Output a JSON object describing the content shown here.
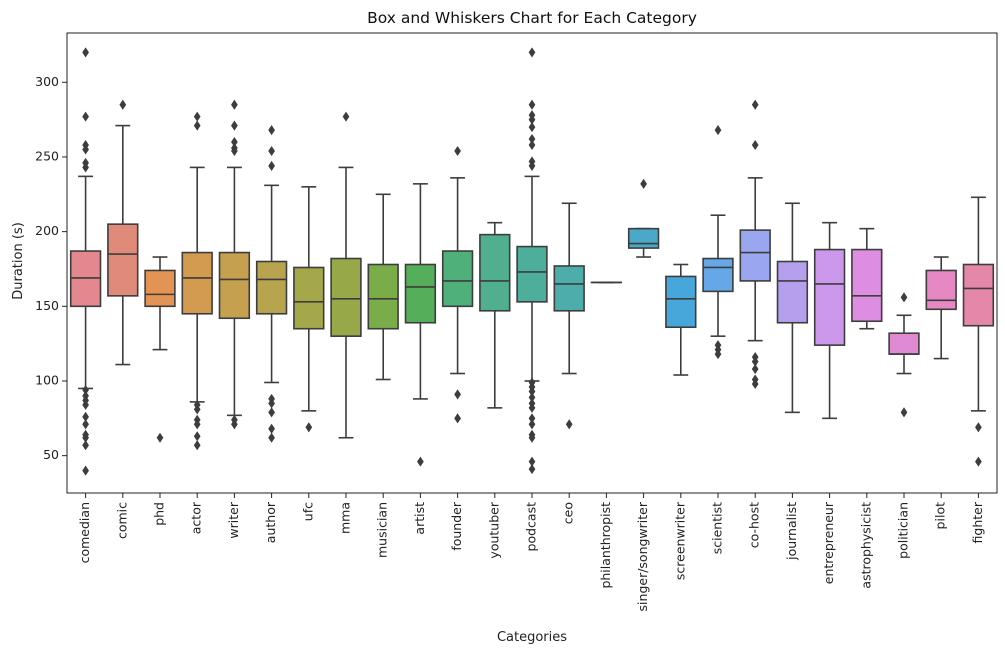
{
  "chart_data": {
    "type": "box",
    "title": "Box and Whiskers Chart for Each Category",
    "xlabel": "Categories",
    "ylabel": "Duration (s)",
    "ylim": [
      25,
      333
    ],
    "yticks": [
      50,
      100,
      150,
      200,
      250,
      300
    ],
    "grid": false,
    "legend": "none",
    "box_edge_color": "#3d3d3d",
    "categories": [
      {
        "name": "comedian",
        "color": "#e5878f",
        "whisker_low": 95,
        "q1": 150,
        "median": 169,
        "q3": 187,
        "whisker_high": 237,
        "outliers": [
          320,
          277,
          258,
          255,
          246,
          243,
          94,
          90,
          87,
          84,
          76,
          71,
          64,
          62,
          57,
          40
        ]
      },
      {
        "name": "comic",
        "color": "#e08b79",
        "whisker_low": 111,
        "q1": 157,
        "median": 185,
        "q3": 205,
        "whisker_high": 271,
        "outliers": [
          285
        ]
      },
      {
        "name": "phd",
        "color": "#e39353",
        "whisker_low": 121,
        "q1": 150,
        "median": 158,
        "q3": 174,
        "whisker_high": 183,
        "outliers": [
          62
        ]
      },
      {
        "name": "actor",
        "color": "#d29b50",
        "whisker_low": 86,
        "q1": 145,
        "median": 169,
        "q3": 186,
        "whisker_high": 243,
        "outliers": [
          277,
          271,
          84,
          81,
          74,
          71,
          63,
          57
        ]
      },
      {
        "name": "writer",
        "color": "#c5a04f",
        "whisker_low": 77,
        "q1": 142,
        "median": 168,
        "q3": 186,
        "whisker_high": 243,
        "outliers": [
          285,
          271,
          260,
          256,
          254,
          74,
          71
        ]
      },
      {
        "name": "author",
        "color": "#b8a34e",
        "whisker_low": 99,
        "q1": 145,
        "median": 168,
        "q3": 180,
        "whisker_high": 231,
        "outliers": [
          268,
          254,
          244,
          88,
          85,
          79,
          68,
          62
        ]
      },
      {
        "name": "ufc",
        "color": "#a5a74b",
        "whisker_low": 80,
        "q1": 135,
        "median": 153,
        "q3": 176,
        "whisker_high": 230,
        "outliers": [
          69
        ]
      },
      {
        "name": "mma",
        "color": "#96a848",
        "whisker_low": 62,
        "q1": 130,
        "median": 155,
        "q3": 182,
        "whisker_high": 243,
        "outliers": [
          277
        ]
      },
      {
        "name": "musician",
        "color": "#7aac4a",
        "whisker_low": 101,
        "q1": 135,
        "median": 155,
        "q3": 178,
        "whisker_high": 225,
        "outliers": []
      },
      {
        "name": "artist",
        "color": "#55ae59",
        "whisker_low": 88,
        "q1": 139,
        "median": 163,
        "q3": 178,
        "whisker_high": 232,
        "outliers": [
          46
        ]
      },
      {
        "name": "founder",
        "color": "#4fb07a",
        "whisker_low": 105,
        "q1": 150,
        "median": 167,
        "q3": 187,
        "whisker_high": 236,
        "outliers": [
          254,
          91,
          75
        ]
      },
      {
        "name": "youtuber",
        "color": "#4faf8f",
        "whisker_low": 82,
        "q1": 147,
        "median": 167,
        "q3": 198,
        "whisker_high": 206,
        "outliers": []
      },
      {
        "name": "podcast",
        "color": "#4eae9c",
        "whisker_low": 100,
        "q1": 153,
        "median": 173,
        "q3": 190,
        "whisker_high": 237,
        "outliers": [
          320,
          285,
          278,
          275,
          270,
          262,
          258,
          247,
          244,
          99,
          96,
          93,
          89,
          85,
          82,
          75,
          71,
          64,
          62,
          46,
          41
        ]
      },
      {
        "name": "ceo",
        "color": "#4cadab",
        "whisker_low": 105,
        "q1": 147,
        "median": 165,
        "q3": 177,
        "whisker_high": 219,
        "outliers": [
          71
        ]
      },
      {
        "name": "philanthropist",
        "color": "#4eabbb",
        "whisker_low": 166,
        "q1": 166,
        "median": 166,
        "q3": 166,
        "whisker_high": 166,
        "outliers": []
      },
      {
        "name": "singer/songwriter",
        "color": "#4aa9c9",
        "whisker_low": 183,
        "q1": 189,
        "median": 192,
        "q3": 202,
        "whisker_high": 202,
        "outliers": [
          232
        ]
      },
      {
        "name": "screenwriter",
        "color": "#48a7da",
        "whisker_low": 104,
        "q1": 136,
        "median": 155,
        "q3": 170,
        "whisker_high": 178,
        "outliers": []
      },
      {
        "name": "scientist",
        "color": "#66a7e8",
        "whisker_low": 130,
        "q1": 160,
        "median": 176,
        "q3": 182,
        "whisker_high": 211,
        "outliers": [
          268,
          124,
          121,
          118
        ]
      },
      {
        "name": "co-host",
        "color": "#9aa6ef",
        "whisker_low": 127,
        "q1": 167,
        "median": 186,
        "q3": 201,
        "whisker_high": 236,
        "outliers": [
          285,
          258,
          116,
          113,
          108,
          101,
          98
        ]
      },
      {
        "name": "journalist",
        "color": "#b5a0ee",
        "whisker_low": 79,
        "q1": 139,
        "median": 167,
        "q3": 180,
        "whisker_high": 219,
        "outliers": []
      },
      {
        "name": "entrepreneur",
        "color": "#cc98eb",
        "whisker_low": 75,
        "q1": 124,
        "median": 165,
        "q3": 188,
        "whisker_high": 206,
        "outliers": []
      },
      {
        "name": "astrophysicist",
        "color": "#dd8ee2",
        "whisker_low": 135,
        "q1": 140,
        "median": 157,
        "q3": 188,
        "whisker_high": 202,
        "outliers": []
      },
      {
        "name": "politician",
        "color": "#e08ad4",
        "whisker_low": 105,
        "q1": 118,
        "median": 118,
        "q3": 132,
        "whisker_high": 144,
        "outliers": [
          156,
          79
        ]
      },
      {
        "name": "pilot",
        "color": "#e588c3",
        "whisker_low": 115,
        "q1": 148,
        "median": 154,
        "q3": 174,
        "whisker_high": 183,
        "outliers": []
      },
      {
        "name": "fighter",
        "color": "#e587a8",
        "whisker_low": 80,
        "q1": 137,
        "median": 162,
        "q3": 178,
        "whisker_high": 223,
        "outliers": [
          69,
          46
        ]
      }
    ]
  }
}
